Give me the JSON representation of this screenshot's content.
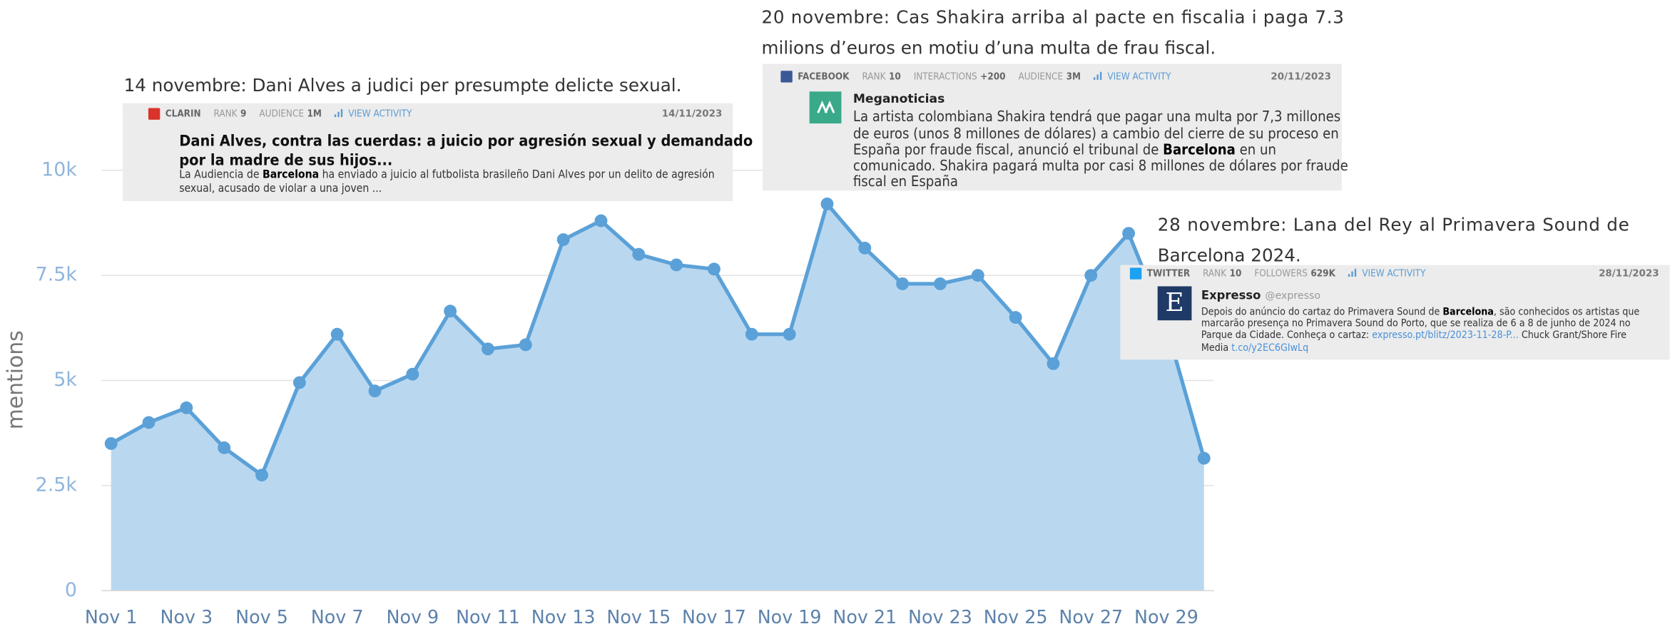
{
  "chart_data": {
    "type": "area",
    "y_label": "mentions",
    "categories": [
      "Nov 1",
      null,
      "Nov 3",
      null,
      "Nov 5",
      null,
      "Nov 7",
      null,
      "Nov 9",
      null,
      "Nov 11",
      null,
      "Nov 13",
      null,
      "Nov 15",
      null,
      "Nov 17",
      null,
      "Nov 19",
      null,
      "Nov 21",
      null,
      "Nov 23",
      null,
      "Nov 25",
      null,
      "Nov 27",
      null,
      "Nov 29",
      null
    ],
    "values": [
      3500,
      4000,
      4350,
      3400,
      2750,
      4950,
      6100,
      4750,
      5150,
      6650,
      5750,
      5850,
      8350,
      8800,
      8000,
      7750,
      7650,
      6100,
      6100,
      9200,
      8150,
      7300,
      7300,
      7500,
      6500,
      5400,
      7500,
      8500,
      6300,
      3150
    ],
    "color": "#5ba1d8",
    "fill": "#b9d8f0",
    "ylim": [
      0,
      10000
    ],
    "yticks": [
      0,
      {
        "value": 2500,
        "label": "2.5k"
      },
      {
        "value": 5000,
        "label": "5k"
      },
      {
        "value": 7500,
        "label": "7.5k"
      },
      {
        "value": 10000,
        "label": "10k"
      }
    ],
    "grid": true,
    "annotations": [
      {
        "heading": [
          "14 novembre: Dani Alves a judici per presumpte delicte sexual."
        ],
        "card": {
          "source": "CLARIN",
          "meta": [
            {
              "label": "RANK",
              "value": "9"
            },
            {
              "label": "AUDIENCE",
              "value": "1M"
            }
          ],
          "action": "VIEW ACTIVITY",
          "date": "14/11/2023",
          "title": [
            "Dani Alves, contra las cuerdas: a juicio por agresión sexual y demandado",
            "por la madre de sus hijos..."
          ],
          "body": [
            [
              {
                "text": "La Audiencia de "
              },
              {
                "text": "Barcelona",
                "bold": true
              },
              {
                "text": " ha enviado a juicio al futbolista brasileño Dani Alves por un delito de agresión"
              }
            ],
            [
              {
                "text": "sexual, acusado de violar a una joven ..."
              }
            ]
          ]
        }
      },
      {
        "heading": [
          "20 novembre: Cas Shakira arriba al pacte en fiscalia i paga 7.3",
          "milions d’euros en motiu d’una multa de frau fiscal."
        ],
        "card": {
          "source": "FACEBOOK",
          "meta": [
            {
              "label": "RANK",
              "value": "10"
            },
            {
              "label": "INTERACTIONS",
              "value": "+200"
            },
            {
              "label": "AUDIENCE",
              "value": "3M"
            }
          ],
          "action": "VIEW ACTIVITY",
          "date": "20/11/2023",
          "author": "Meganoticias",
          "body": [
            [
              {
                "text": "La artista colombiana Shakira tendrá que pagar una multa por 7,3 millones"
              }
            ],
            [
              {
                "text": "de euros (unos 8 millones de dólares) a cambio del cierre de su proceso en"
              }
            ],
            [
              {
                "text": "España por fraude fiscal, anunció el tribunal de "
              },
              {
                "text": "Barcelona",
                "bold": true
              },
              {
                "text": " en un"
              }
            ],
            [
              {
                "text": "comunicado. Shakira pagará multa por casi 8 millones de dólares por fraude"
              }
            ],
            [
              {
                "text": "fiscal en España"
              }
            ]
          ]
        }
      },
      {
        "heading": [
          "28 novembre: Lana del Rey al Primavera Sound de",
          "Barcelona 2024."
        ],
        "card": {
          "source": "TWITTER",
          "meta": [
            {
              "label": "RANK",
              "value": "10"
            },
            {
              "label": "FOLLOWERS",
              "value": "629K"
            }
          ],
          "action": "VIEW ACTIVITY",
          "date": "28/11/2023",
          "logo": "E",
          "author": "Expresso",
          "handle": "@expresso",
          "body": [
            [
              {
                "text": "Depois do anúncio do cartaz do Primavera Sound de "
              },
              {
                "text": "Barcelona",
                "bold": true
              },
              {
                "text": ", são conhecidos os artistas que"
              }
            ],
            [
              {
                "text": "marcarão presença no Primavera Sound do Porto, que se realiza de 6 a 8 de junho de 2024 no"
              }
            ],
            [
              {
                "text": "Parque da Cidade. Conheça o cartaz: "
              },
              {
                "text": "expresso.pt/blitz/2023-11-28-P...",
                "link": true
              },
              {
                "text": " Chuck Grant/Shore Fire"
              }
            ],
            [
              {
                "text": "Media "
              },
              {
                "text": "t.co/y2EC6GIwLq",
                "link": true
              }
            ]
          ]
        }
      }
    ]
  }
}
